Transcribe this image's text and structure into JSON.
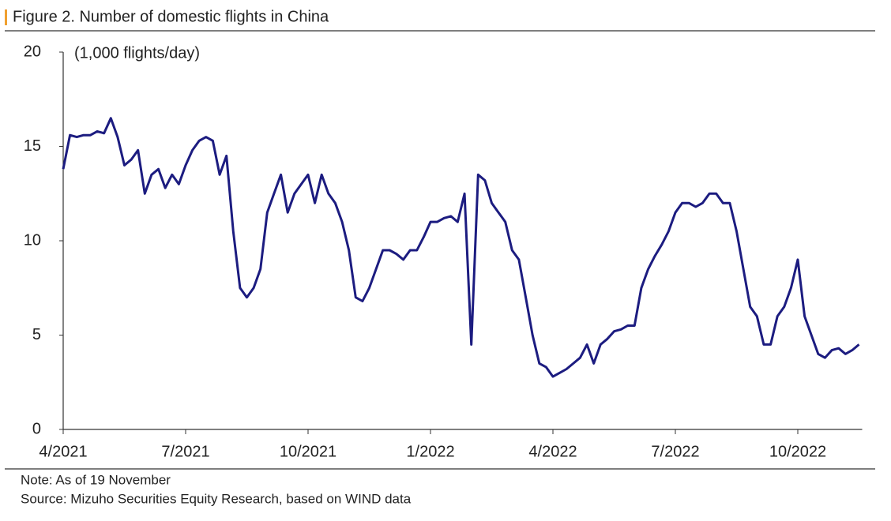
{
  "chart_data": {
    "type": "line",
    "title": "Figure 2. Number of domestic flights in China",
    "y_label": "(1,000 flights/day)",
    "notes": [
      "Note: As of 19 November",
      "Source: Mizuho Securities Equity Research, based on WIND data"
    ],
    "color": "#1c1c80",
    "ylim": [
      0,
      20
    ],
    "yticks": [
      0,
      5,
      10,
      15,
      20
    ],
    "categories": [
      "4/2021",
      null,
      null,
      null,
      null,
      null,
      null,
      null,
      null,
      null,
      null,
      null,
      null,
      null,
      null,
      null,
      null,
      null,
      "7/2021",
      null,
      null,
      null,
      null,
      null,
      null,
      null,
      null,
      null,
      null,
      null,
      null,
      null,
      null,
      null,
      null,
      null,
      "10/2021",
      null,
      null,
      null,
      null,
      null,
      null,
      null,
      null,
      null,
      null,
      null,
      null,
      null,
      null,
      null,
      null,
      null,
      "1/2022",
      null,
      null,
      null,
      null,
      null,
      null,
      null,
      null,
      null,
      null,
      null,
      null,
      null,
      null,
      null,
      null,
      null,
      "4/2022",
      null,
      null,
      null,
      null,
      null,
      null,
      null,
      null,
      null,
      null,
      null,
      null,
      null,
      null,
      null,
      null,
      null,
      "7/2022",
      null,
      null,
      null,
      null,
      null,
      null,
      null,
      null,
      null,
      null,
      null,
      null,
      null,
      null,
      null,
      null,
      null,
      "10/2022",
      null,
      null,
      null,
      null,
      null,
      null,
      null,
      null,
      null
    ],
    "values": [
      13.8,
      15.6,
      15.5,
      15.6,
      15.6,
      15.8,
      15.7,
      16.5,
      15.5,
      14.0,
      14.3,
      14.8,
      12.5,
      13.5,
      13.8,
      12.8,
      13.5,
      13.0,
      14.0,
      14.8,
      15.3,
      15.5,
      15.3,
      13.5,
      14.5,
      10.5,
      7.5,
      7.0,
      7.5,
      8.5,
      11.5,
      12.5,
      13.5,
      11.5,
      12.5,
      13.0,
      13.5,
      12.0,
      13.5,
      12.5,
      12.0,
      11.0,
      9.5,
      7.0,
      6.8,
      7.5,
      8.5,
      9.5,
      9.5,
      9.3,
      9.0,
      9.5,
      9.5,
      10.2,
      11.0,
      11.0,
      11.2,
      11.3,
      11.0,
      12.5,
      4.5,
      13.5,
      13.2,
      12.0,
      11.5,
      11.0,
      9.5,
      9.0,
      7.0,
      5.0,
      3.5,
      3.3,
      2.8,
      3.0,
      3.2,
      3.5,
      3.8,
      4.5,
      3.5,
      4.5,
      4.8,
      5.2,
      5.3,
      5.5,
      5.5,
      7.5,
      8.5,
      9.2,
      9.8,
      10.5,
      11.5,
      12.0,
      12.0,
      11.8,
      12.0,
      12.5,
      12.5,
      12.0,
      12.0,
      10.5,
      8.5,
      6.5,
      6.0,
      4.5,
      4.5,
      6.0,
      6.5,
      7.5,
      9.0,
      6.0,
      5.0,
      4.0,
      3.8,
      4.2,
      4.3,
      4.0,
      4.2,
      4.5
    ]
  }
}
